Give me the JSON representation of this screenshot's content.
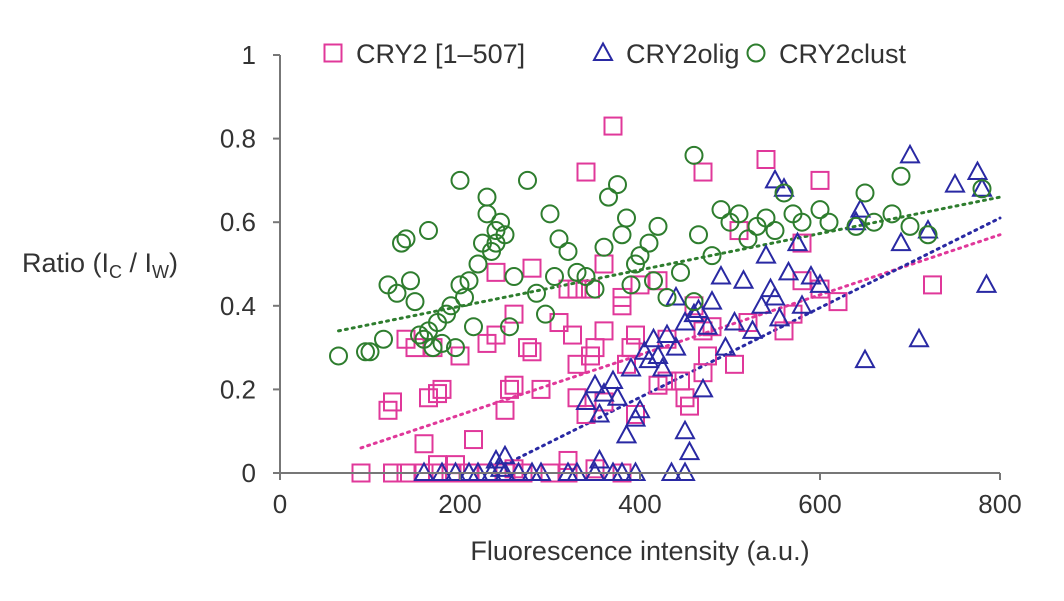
{
  "chart_data": {
    "type": "scatter",
    "title": "",
    "xlabel": "Fluorescence intensity (a.u.)",
    "ylabel": {
      "main": "Ratio (I",
      "sub1": "C",
      "mid": " / I",
      "sub2": "W",
      "end": ")"
    },
    "xlim": [
      0,
      800
    ],
    "ylim": [
      0,
      1
    ],
    "xticks": [
      0,
      200,
      400,
      600,
      800
    ],
    "yticks": [
      0,
      0.2,
      0.4,
      0.6,
      0.8,
      1
    ],
    "ytick_labels": [
      "0",
      "0.2",
      "0.4",
      "0.6",
      "0.8",
      "1"
    ],
    "grid": false,
    "legend_position": "top",
    "series": [
      {
        "name": "CRY2 [1–507]",
        "marker": "square",
        "color": "#e0389a",
        "trendline": {
          "x": [
            90,
            800
          ],
          "y": [
            0.06,
            0.57
          ]
        },
        "points": [
          [
            90,
            0
          ],
          [
            125,
            0
          ],
          [
            140,
            0
          ],
          [
            160,
            0
          ],
          [
            175,
            0
          ],
          [
            190,
            0
          ],
          [
            210,
            0
          ],
          [
            230,
            0
          ],
          [
            250,
            0
          ],
          [
            270,
            0
          ],
          [
            300,
            0
          ],
          [
            320,
            0
          ],
          [
            350,
            0.01
          ],
          [
            380,
            0
          ],
          [
            175,
            0.02
          ],
          [
            195,
            0.02
          ],
          [
            260,
            0.01
          ],
          [
            320,
            0.03
          ],
          [
            120,
            0.15
          ],
          [
            125,
            0.17
          ],
          [
            160,
            0.07
          ],
          [
            165,
            0.18
          ],
          [
            175,
            0.19
          ],
          [
            180,
            0.2
          ],
          [
            215,
            0.08
          ],
          [
            250,
            0.15
          ],
          [
            255,
            0.2
          ],
          [
            260,
            0.21
          ],
          [
            290,
            0.2
          ],
          [
            330,
            0.18
          ],
          [
            340,
            0.14
          ],
          [
            360,
            0.17
          ],
          [
            385,
            0.26
          ],
          [
            395,
            0.14
          ],
          [
            420,
            0.21
          ],
          [
            430,
            0.22
          ],
          [
            450,
            0.18
          ],
          [
            455,
            0.16
          ],
          [
            470,
            0.24
          ],
          [
            475,
            0.28
          ],
          [
            505,
            0.26
          ],
          [
            140,
            0.32
          ],
          [
            150,
            0.3
          ],
          [
            170,
            0.3
          ],
          [
            200,
            0.28
          ],
          [
            230,
            0.31
          ],
          [
            240,
            0.33
          ],
          [
            260,
            0.38
          ],
          [
            275,
            0.3
          ],
          [
            280,
            0.29
          ],
          [
            310,
            0.36
          ],
          [
            325,
            0.33
          ],
          [
            330,
            0.26
          ],
          [
            345,
            0.28
          ],
          [
            350,
            0.3
          ],
          [
            360,
            0.34
          ],
          [
            380,
            0.4
          ],
          [
            390,
            0.3
          ],
          [
            395,
            0.33
          ],
          [
            430,
            0.32
          ],
          [
            445,
            0.22
          ],
          [
            480,
            0.35
          ],
          [
            520,
            0.36
          ],
          [
            560,
            0.34
          ],
          [
            570,
            0.38
          ],
          [
            240,
            0.48
          ],
          [
            280,
            0.49
          ],
          [
            320,
            0.44
          ],
          [
            330,
            0.44
          ],
          [
            345,
            0.44
          ],
          [
            360,
            0.5
          ],
          [
            380,
            0.42
          ],
          [
            400,
            0.45
          ],
          [
            420,
            0.46
          ],
          [
            460,
            0.4
          ],
          [
            470,
            0.34
          ],
          [
            580,
            0.46
          ],
          [
            600,
            0.44
          ],
          [
            620,
            0.41
          ],
          [
            725,
            0.45
          ],
          [
            340,
            0.72
          ],
          [
            370,
            0.83
          ],
          [
            470,
            0.72
          ],
          [
            510,
            0.58
          ],
          [
            540,
            0.75
          ],
          [
            580,
            0.55
          ],
          [
            600,
            0.7
          ]
        ]
      },
      {
        "name": "CRY2olig",
        "marker": "triangle",
        "color": "#2929a3",
        "trendline": {
          "x": [
            250,
            800
          ],
          "y": [
            0.02,
            0.61
          ]
        },
        "points": [
          [
            160,
            0
          ],
          [
            180,
            0
          ],
          [
            195,
            0
          ],
          [
            210,
            0
          ],
          [
            220,
            0
          ],
          [
            235,
            0
          ],
          [
            245,
            0.01
          ],
          [
            250,
            0
          ],
          [
            265,
            0
          ],
          [
            280,
            0
          ],
          [
            290,
            0
          ],
          [
            320,
            0
          ],
          [
            330,
            0
          ],
          [
            350,
            0
          ],
          [
            370,
            0
          ],
          [
            380,
            0
          ],
          [
            395,
            0
          ],
          [
            435,
            0
          ],
          [
            450,
            0
          ],
          [
            240,
            0.03
          ],
          [
            250,
            0.04
          ],
          [
            355,
            0.03
          ],
          [
            340,
            0.17
          ],
          [
            350,
            0.21
          ],
          [
            355,
            0.14
          ],
          [
            360,
            0.19
          ],
          [
            370,
            0.22
          ],
          [
            375,
            0.18
          ],
          [
            385,
            0.09
          ],
          [
            395,
            0.13
          ],
          [
            400,
            0.15
          ],
          [
            410,
            0.27
          ],
          [
            420,
            0.28
          ],
          [
            425,
            0.25
          ],
          [
            430,
            0.33
          ],
          [
            440,
            0.3
          ],
          [
            450,
            0.1
          ],
          [
            455,
            0.05
          ],
          [
            460,
            0.38
          ],
          [
            465,
            0.39
          ],
          [
            470,
            0.2
          ],
          [
            475,
            0.35
          ],
          [
            480,
            0.41
          ],
          [
            490,
            0.47
          ],
          [
            495,
            0.3
          ],
          [
            505,
            0.36
          ],
          [
            515,
            0.46
          ],
          [
            525,
            0.34
          ],
          [
            535,
            0.4
          ],
          [
            540,
            0.52
          ],
          [
            545,
            0.44
          ],
          [
            550,
            0.42
          ],
          [
            555,
            0.37
          ],
          [
            565,
            0.48
          ],
          [
            575,
            0.55
          ],
          [
            580,
            0.4
          ],
          [
            590,
            0.47
          ],
          [
            600,
            0.45
          ],
          [
            440,
            0.42
          ],
          [
            450,
            0.36
          ],
          [
            405,
            0.29
          ],
          [
            415,
            0.32
          ],
          [
            390,
            0.25
          ],
          [
            550,
            0.7
          ],
          [
            560,
            0.68
          ],
          [
            640,
            0.6
          ],
          [
            645,
            0.63
          ],
          [
            650,
            0.27
          ],
          [
            690,
            0.55
          ],
          [
            700,
            0.76
          ],
          [
            710,
            0.32
          ],
          [
            720,
            0.58
          ],
          [
            750,
            0.69
          ],
          [
            775,
            0.72
          ],
          [
            780,
            0.68
          ],
          [
            785,
            0.45
          ]
        ]
      },
      {
        "name": "CRY2clust",
        "marker": "circle",
        "color": "#2e7d2e",
        "trendline": {
          "x": [
            65,
            800
          ],
          "y": [
            0.34,
            0.66
          ]
        },
        "points": [
          [
            65,
            0.28
          ],
          [
            95,
            0.29
          ],
          [
            100,
            0.29
          ],
          [
            115,
            0.32
          ],
          [
            120,
            0.45
          ],
          [
            130,
            0.43
          ],
          [
            135,
            0.55
          ],
          [
            140,
            0.56
          ],
          [
            145,
            0.46
          ],
          [
            150,
            0.41
          ],
          [
            155,
            0.33
          ],
          [
            160,
            0.32
          ],
          [
            165,
            0.34
          ],
          [
            170,
            0.3
          ],
          [
            175,
            0.36
          ],
          [
            180,
            0.31
          ],
          [
            185,
            0.38
          ],
          [
            190,
            0.4
          ],
          [
            195,
            0.3
          ],
          [
            200,
            0.45
          ],
          [
            205,
            0.42
          ],
          [
            210,
            0.46
          ],
          [
            215,
            0.35
          ],
          [
            220,
            0.5
          ],
          [
            225,
            0.55
          ],
          [
            230,
            0.62
          ],
          [
            235,
            0.53
          ],
          [
            240,
            0.58
          ],
          [
            245,
            0.6
          ],
          [
            250,
            0.57
          ],
          [
            255,
            0.35
          ],
          [
            260,
            0.47
          ],
          [
            165,
            0.58
          ],
          [
            200,
            0.7
          ],
          [
            230,
            0.66
          ],
          [
            240,
            0.55
          ],
          [
            275,
            0.7
          ],
          [
            285,
            0.43
          ],
          [
            295,
            0.38
          ],
          [
            300,
            0.62
          ],
          [
            305,
            0.47
          ],
          [
            310,
            0.56
          ],
          [
            320,
            0.53
          ],
          [
            330,
            0.48
          ],
          [
            340,
            0.47
          ],
          [
            350,
            0.44
          ],
          [
            360,
            0.54
          ],
          [
            365,
            0.66
          ],
          [
            375,
            0.69
          ],
          [
            380,
            0.57
          ],
          [
            385,
            0.61
          ],
          [
            390,
            0.45
          ],
          [
            395,
            0.5
          ],
          [
            400,
            0.52
          ],
          [
            410,
            0.55
          ],
          [
            415,
            0.46
          ],
          [
            420,
            0.59
          ],
          [
            430,
            0.42
          ],
          [
            445,
            0.48
          ],
          [
            460,
            0.41
          ],
          [
            465,
            0.57
          ],
          [
            460,
            0.76
          ],
          [
            480,
            0.52
          ],
          [
            490,
            0.63
          ],
          [
            500,
            0.6
          ],
          [
            510,
            0.62
          ],
          [
            520,
            0.56
          ],
          [
            530,
            0.59
          ],
          [
            540,
            0.61
          ],
          [
            550,
            0.58
          ],
          [
            560,
            0.67
          ],
          [
            570,
            0.62
          ],
          [
            580,
            0.6
          ],
          [
            600,
            0.63
          ],
          [
            610,
            0.6
          ],
          [
            640,
            0.59
          ],
          [
            650,
            0.67
          ],
          [
            660,
            0.6
          ],
          [
            680,
            0.62
          ],
          [
            690,
            0.71
          ],
          [
            700,
            0.59
          ],
          [
            720,
            0.57
          ],
          [
            780,
            0.68
          ]
        ]
      }
    ]
  }
}
